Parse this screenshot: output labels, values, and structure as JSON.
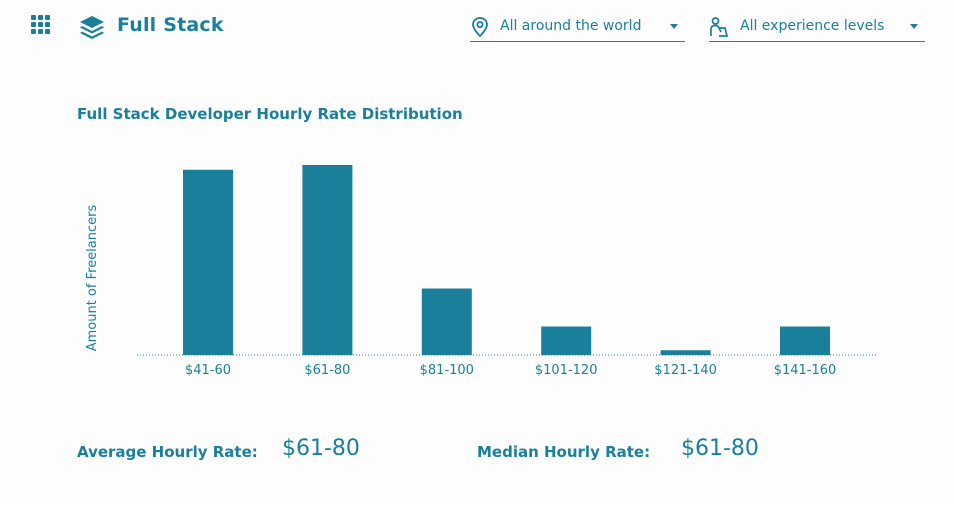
{
  "header": {
    "app_title": "Full Stack",
    "menu_icon": "grid-menu-icon",
    "logo_icon": "layers-icon",
    "location_filter": {
      "value": "All around the world",
      "icon": "location-pin-icon"
    },
    "experience_filter": {
      "value": "All experience levels",
      "icon": "person-laptop-icon"
    }
  },
  "colors": {
    "accent": "#1a7f9b",
    "background": "#fdfdfd"
  },
  "chart_data": {
    "type": "bar",
    "title": "Full Stack Developer Hourly Rate Distribution",
    "xlabel": "",
    "ylabel": "Amount of Freelancers",
    "categories": [
      "$41-60",
      "$61-80",
      "$81-100",
      "$101-120",
      "$121-140",
      "$141-160"
    ],
    "values": [
      39,
      40,
      14,
      6,
      1,
      6
    ],
    "ylim": [
      0,
      40
    ],
    "grid": false,
    "legend": "none"
  },
  "stats": {
    "average_label": "Average Hourly Rate:",
    "average_value": "$61-80",
    "median_label": "Median Hourly Rate:",
    "median_value": "$61-80"
  }
}
